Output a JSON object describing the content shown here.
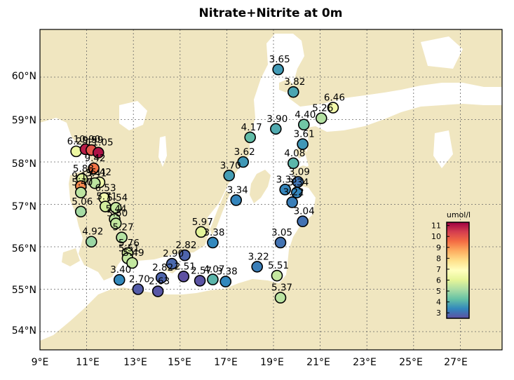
{
  "title": "Nitrate+Nitrite at 0m",
  "map": {
    "lon_range": [
      9,
      29.8
    ],
    "lat_range": [
      53.6,
      61.1
    ],
    "lon_ticks": [
      "9°E",
      "11°E",
      "13°E",
      "15°E",
      "17°E",
      "19°E",
      "21°E",
      "23°E",
      "25°E",
      "27°E"
    ],
    "lat_ticks": [
      "54°N",
      "55°N",
      "56°N",
      "57°N",
      "58°N",
      "59°N",
      "60°N"
    ],
    "land_color": "#f0e6c0",
    "sea_color": "#ffffff",
    "grid": "dotted"
  },
  "colorbar": {
    "label": "umol/l",
    "ticks": [
      "3",
      "4",
      "5",
      "6",
      "7",
      "8",
      "9",
      "10",
      "11"
    ],
    "range": [
      2.5,
      11.3
    ],
    "colormap": "Spectral_r"
  },
  "stations": [
    {
      "lon": 19.2,
      "lat": 60.18,
      "value": 3.65,
      "label": "3.65"
    },
    {
      "lon": 19.85,
      "lat": 59.65,
      "value": 3.82,
      "label": "3.82"
    },
    {
      "lon": 21.55,
      "lat": 59.28,
      "value": 6.46,
      "label": "6.46"
    },
    {
      "lon": 20.3,
      "lat": 58.88,
      "value": 4.4,
      "label": "4.40"
    },
    {
      "lon": 21.05,
      "lat": 59.03,
      "value": 5.26,
      "label": "5.26"
    },
    {
      "lon": 19.1,
      "lat": 58.78,
      "value": 3.9,
      "label": "3.90"
    },
    {
      "lon": 18.0,
      "lat": 58.58,
      "value": 4.17,
      "label": "4.17"
    },
    {
      "lon": 20.25,
      "lat": 58.42,
      "value": 3.61,
      "label": "3.61"
    },
    {
      "lon": 17.7,
      "lat": 58.0,
      "value": 3.62,
      "label": "3.62"
    },
    {
      "lon": 19.85,
      "lat": 57.97,
      "value": 4.08,
      "label": "4.08"
    },
    {
      "lon": 17.1,
      "lat": 57.68,
      "value": 3.7,
      "label": "3.70"
    },
    {
      "lon": 20.05,
      "lat": 57.53,
      "value": 3.09,
      "label": "3.09"
    },
    {
      "lon": 19.5,
      "lat": 57.35,
      "value": 3.33,
      "label": "3.33"
    },
    {
      "lon": 20.0,
      "lat": 57.28,
      "value": 3.34,
      "label": "3.34"
    },
    {
      "lon": 17.4,
      "lat": 57.1,
      "value": 3.34,
      "label": "3.34"
    },
    {
      "lon": 19.8,
      "lat": 57.05,
      "value": 3.22,
      "label": "3.22"
    },
    {
      "lon": 20.25,
      "lat": 56.6,
      "value": 3.04,
      "label": "3.04"
    },
    {
      "lon": 15.9,
      "lat": 56.35,
      "value": 5.97,
      "label": "5.97"
    },
    {
      "lon": 16.4,
      "lat": 56.1,
      "value": 3.38,
      "label": "3.38"
    },
    {
      "lon": 19.3,
      "lat": 56.1,
      "value": 3.05,
      "label": "3.05"
    },
    {
      "lon": 15.2,
      "lat": 55.8,
      "value": 2.82,
      "label": "2.82"
    },
    {
      "lon": 14.65,
      "lat": 55.6,
      "value": 2.9,
      "label": "2.90"
    },
    {
      "lon": 18.3,
      "lat": 55.53,
      "value": 3.22,
      "label": "3.22"
    },
    {
      "lon": 19.15,
      "lat": 55.32,
      "value": 5.51,
      "label": "5.51"
    },
    {
      "lon": 14.2,
      "lat": 55.27,
      "value": 2.82,
      "label": "2.82"
    },
    {
      "lon": 15.15,
      "lat": 55.3,
      "value": 2.51,
      "label": "2.51"
    },
    {
      "lon": 15.85,
      "lat": 55.2,
      "value": 2.57,
      "label": "2.57"
    },
    {
      "lon": 16.4,
      "lat": 55.23,
      "value": 4.07,
      "label": "4.07"
    },
    {
      "lon": 16.95,
      "lat": 55.18,
      "value": 3.38,
      "label": "3.38"
    },
    {
      "lon": 12.4,
      "lat": 55.22,
      "value": 3.4,
      "label": "3.40"
    },
    {
      "lon": 13.2,
      "lat": 55.0,
      "value": 2.7,
      "label": "2.70"
    },
    {
      "lon": 14.05,
      "lat": 54.95,
      "value": 2.63,
      "label": "2.63"
    },
    {
      "lon": 19.3,
      "lat": 54.8,
      "value": 5.37,
      "label": "5.37"
    },
    {
      "lon": 10.55,
      "lat": 58.25,
      "value": 6.25,
      "label": "6.25"
    },
    {
      "lon": 10.95,
      "lat": 58.3,
      "value": 10.9,
      "label": "10.90"
    },
    {
      "lon": 11.2,
      "lat": 58.28,
      "value": 9.99,
      "label": "9.99"
    },
    {
      "lon": 11.5,
      "lat": 58.22,
      "value": 11.05,
      "label": "11.05"
    },
    {
      "lon": 11.3,
      "lat": 57.85,
      "value": 9.42,
      "label": "9.42"
    },
    {
      "lon": 10.8,
      "lat": 57.6,
      "value": 5.88,
      "label": "5.88"
    },
    {
      "lon": 11.55,
      "lat": 57.52,
      "value": 6.42,
      "label": "6.42"
    },
    {
      "lon": 10.75,
      "lat": 57.43,
      "value": 9.13,
      "label": "9.13"
    },
    {
      "lon": 11.35,
      "lat": 57.5,
      "value": 5.41,
      "label": "5.41"
    },
    {
      "lon": 10.75,
      "lat": 57.28,
      "value": 5.4,
      "label": "5.40"
    },
    {
      "lon": 11.75,
      "lat": 57.15,
      "value": 6.53,
      "label": "6.53"
    },
    {
      "lon": 11.8,
      "lat": 56.95,
      "value": 5.71,
      "label": "5.71"
    },
    {
      "lon": 12.25,
      "lat": 56.92,
      "value": 5.54,
      "label": "5.54"
    },
    {
      "lon": 10.75,
      "lat": 56.83,
      "value": 5.06,
      "label": "5.06"
    },
    {
      "lon": 12.2,
      "lat": 56.65,
      "value": 5.44,
      "label": "5.44"
    },
    {
      "lon": 12.25,
      "lat": 56.55,
      "value": 5.5,
      "label": "5.50"
    },
    {
      "lon": 12.5,
      "lat": 56.22,
      "value": 5.27,
      "label": "5.27"
    },
    {
      "lon": 11.2,
      "lat": 56.12,
      "value": 4.92,
      "label": "4.92"
    },
    {
      "lon": 12.75,
      "lat": 55.85,
      "value": 5.76,
      "label": "5.76"
    },
    {
      "lon": 12.75,
      "lat": 55.73,
      "value": 5.51,
      "label": "5.51"
    },
    {
      "lon": 12.95,
      "lat": 55.62,
      "value": 5.49,
      "label": "5.49"
    }
  ]
}
